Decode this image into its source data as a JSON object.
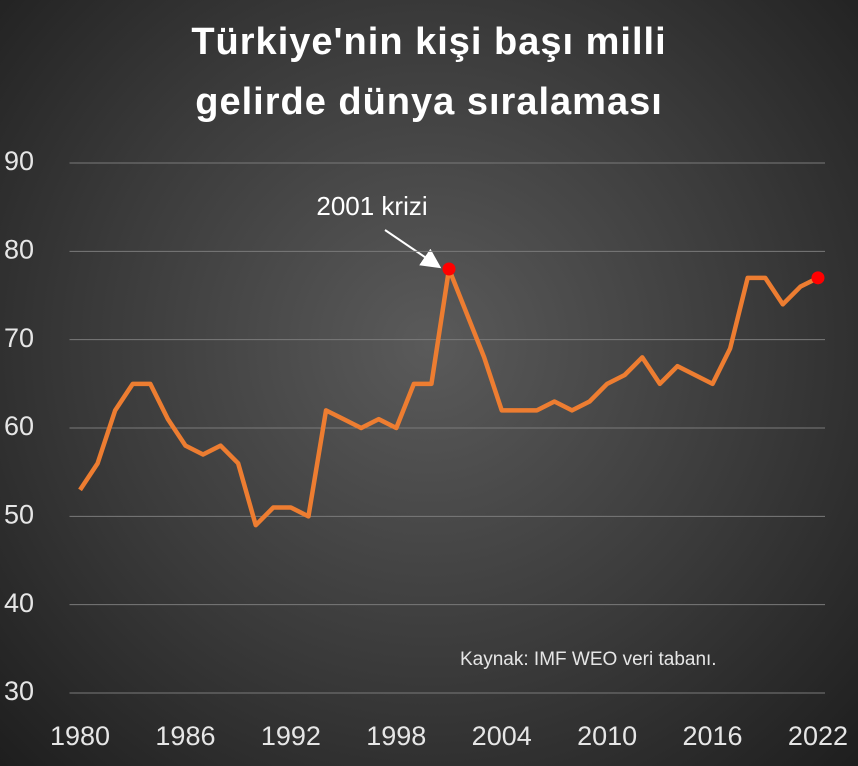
{
  "chart_data": {
    "type": "line",
    "title": "Türkiye'nin kişi başı milli gelirde dünya sıralaması",
    "x": [
      1980,
      1981,
      1982,
      1983,
      1984,
      1985,
      1986,
      1987,
      1988,
      1989,
      1990,
      1991,
      1992,
      1993,
      1994,
      1995,
      1996,
      1997,
      1998,
      1999,
      2000,
      2001,
      2002,
      2003,
      2004,
      2005,
      2006,
      2007,
      2008,
      2009,
      2010,
      2011,
      2012,
      2013,
      2014,
      2015,
      2016,
      2017,
      2018,
      2019,
      2020,
      2021,
      2022
    ],
    "series": [
      {
        "color": "#ed7d31",
        "values": [
          53,
          56,
          62,
          65,
          65,
          61,
          58,
          57,
          58,
          56,
          49,
          51,
          51,
          50,
          62,
          61,
          60,
          61,
          60,
          65,
          65,
          78,
          73,
          68,
          62,
          62,
          62,
          63,
          62,
          63,
          65,
          66,
          68,
          65,
          67,
          66,
          65,
          69,
          77,
          77,
          74,
          76,
          77
        ]
      }
    ],
    "xlim": [
      1979.4,
      2022.4
    ],
    "xticks": [
      1980,
      1986,
      1992,
      1998,
      2004,
      2010,
      2016,
      2022
    ],
    "ylim": [
      30,
      90
    ],
    "yticks": [
      30,
      40,
      50,
      60,
      70,
      80,
      90
    ],
    "grid": true,
    "highlight": {
      "color": "#ff0000",
      "x": [
        2001,
        2022
      ]
    },
    "annotation": "2001 krizi",
    "source": "Kaynak: IMF WEO veri tabanı."
  }
}
